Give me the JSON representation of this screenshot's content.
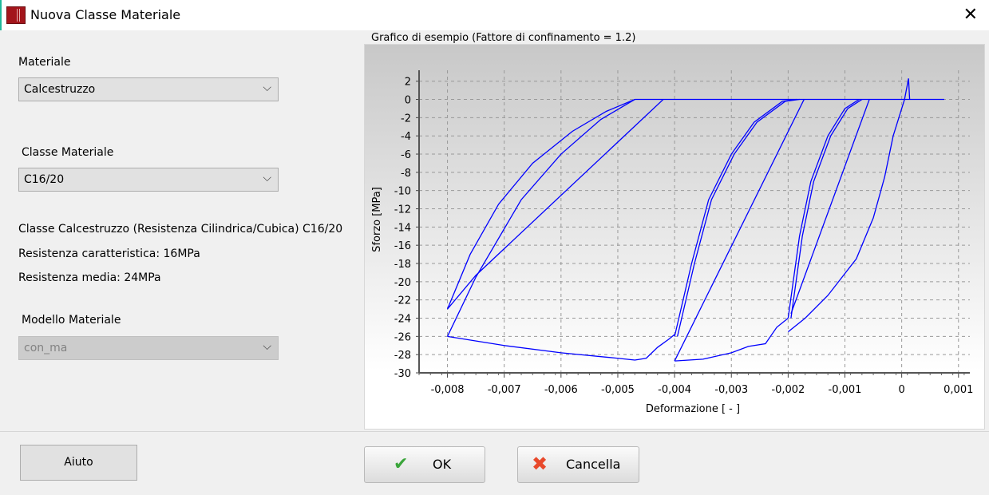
{
  "window": {
    "title": "Nuova Classe Materiale",
    "close_icon": "close-icon"
  },
  "left": {
    "materiale_label": "Materiale",
    "materiale_value": "Calcestruzzo",
    "classe_label": "Classe Materiale",
    "classe_value": "C16/20",
    "info1": "Classe Calcestruzzo (Resistenza Cilindrica/Cubica) C16/20",
    "info2": "Resistenza caratteristica: 16MPa",
    "info3": "Resistenza media: 24MPa",
    "modello_label": "Modello Materiale",
    "modello_value": "con_ma"
  },
  "buttons": {
    "help": "Aiuto",
    "ok": "OK",
    "cancel": "Cancella"
  },
  "chart_data": {
    "type": "line",
    "title": "Grafico di esempio (Fattore di confinamento = 1.2)",
    "xlabel": "Deformazione [ - ]",
    "ylabel": "Sforzo [MPa]",
    "xlim": [
      -0.0085,
      0.0012
    ],
    "ylim": [
      -30,
      3.2
    ],
    "xticks": [
      -0.008,
      -0.007,
      -0.006,
      -0.005,
      -0.004,
      -0.003,
      -0.002,
      -0.001,
      0,
      0.001
    ],
    "xtick_labels": [
      "-0,008",
      "-0,007",
      "-0,006",
      "-0,005",
      "-0,004",
      "-0,003",
      "-0,002",
      "-0,001",
      "0",
      "0,001"
    ],
    "yticks": [
      2,
      0,
      -2,
      -4,
      -6,
      -8,
      -10,
      -12,
      -14,
      -16,
      -18,
      -20,
      -22,
      -24,
      -26,
      -28,
      -30
    ],
    "grid": true,
    "color": "#0000ff",
    "segments": [
      [
        [
          -0.0047,
          0
        ],
        [
          0.00075,
          0
        ]
      ],
      [
        [
          -0.002,
          -25.5
        ],
        [
          -0.0017,
          -24
        ],
        [
          -0.0013,
          -21.5
        ],
        [
          -0.0008,
          -17.5
        ],
        [
          -0.0005,
          -13
        ],
        [
          -0.0003,
          -8.5
        ],
        [
          -0.00015,
          -4
        ],
        [
          5e-05,
          0
        ],
        [
          0.00012,
          2.3
        ],
        [
          0.00014,
          0
        ]
      ],
      [
        [
          -0.00195,
          -23.5
        ],
        [
          -0.00057,
          0
        ]
      ],
      [
        [
          -0.002,
          -24
        ],
        [
          -0.0018,
          -15
        ],
        [
          -0.0016,
          -9
        ],
        [
          -0.0013,
          -4
        ],
        [
          -0.001,
          -1
        ],
        [
          -0.00075,
          0
        ]
      ],
      [
        [
          -0.00195,
          -24
        ],
        [
          -0.00175,
          -15
        ],
        [
          -0.00155,
          -9
        ],
        [
          -0.00125,
          -4
        ],
        [
          -0.00095,
          -1
        ],
        [
          -0.0007,
          0
        ]
      ],
      [
        [
          -0.004,
          -28.7
        ],
        [
          -0.0035,
          -28.5
        ],
        [
          -0.003,
          -27.8
        ],
        [
          -0.0027,
          -27.1
        ],
        [
          -0.0024,
          -26.8
        ],
        [
          -0.0022,
          -25
        ],
        [
          -0.002,
          -24
        ]
      ],
      [
        [
          -0.004,
          -26
        ],
        [
          -0.0037,
          -18
        ],
        [
          -0.0034,
          -11
        ],
        [
          -0.003,
          -6
        ],
        [
          -0.0026,
          -2.5
        ],
        [
          -0.0021,
          -0.2
        ],
        [
          -0.00185,
          0
        ]
      ],
      [
        [
          -0.00395,
          -26
        ],
        [
          -0.00365,
          -18
        ],
        [
          -0.00335,
          -11
        ],
        [
          -0.00295,
          -6
        ],
        [
          -0.00255,
          -2.5
        ],
        [
          -0.00205,
          -0.2
        ],
        [
          -0.0018,
          0
        ]
      ],
      [
        [
          -0.004,
          -28.7
        ],
        [
          -0.00172,
          0
        ]
      ],
      [
        [
          -0.008,
          -26
        ],
        [
          -0.007,
          -27
        ],
        [
          -0.006,
          -27.8
        ],
        [
          -0.005,
          -28.4
        ],
        [
          -0.0047,
          -28.6
        ],
        [
          -0.0045,
          -28.4
        ],
        [
          -0.0043,
          -27.2
        ],
        [
          -0.0041,
          -26.3
        ],
        [
          -0.004,
          -25.8
        ]
      ],
      [
        [
          -0.008,
          -23
        ],
        [
          -0.0075,
          -19.3
        ],
        [
          -0.0042,
          0
        ]
      ],
      [
        [
          -0.008,
          -26
        ],
        [
          -0.0075,
          -19.5
        ],
        [
          -0.0067,
          -11
        ],
        [
          -0.006,
          -6
        ],
        [
          -0.0053,
          -2.2
        ],
        [
          -0.0047,
          0
        ]
      ],
      [
        [
          -0.008,
          -23
        ],
        [
          -0.0076,
          -17
        ],
        [
          -0.0071,
          -11.5
        ],
        [
          -0.0065,
          -7
        ],
        [
          -0.0058,
          -3.5
        ],
        [
          -0.0052,
          -1.3
        ],
        [
          -0.0047,
          0
        ]
      ]
    ]
  }
}
